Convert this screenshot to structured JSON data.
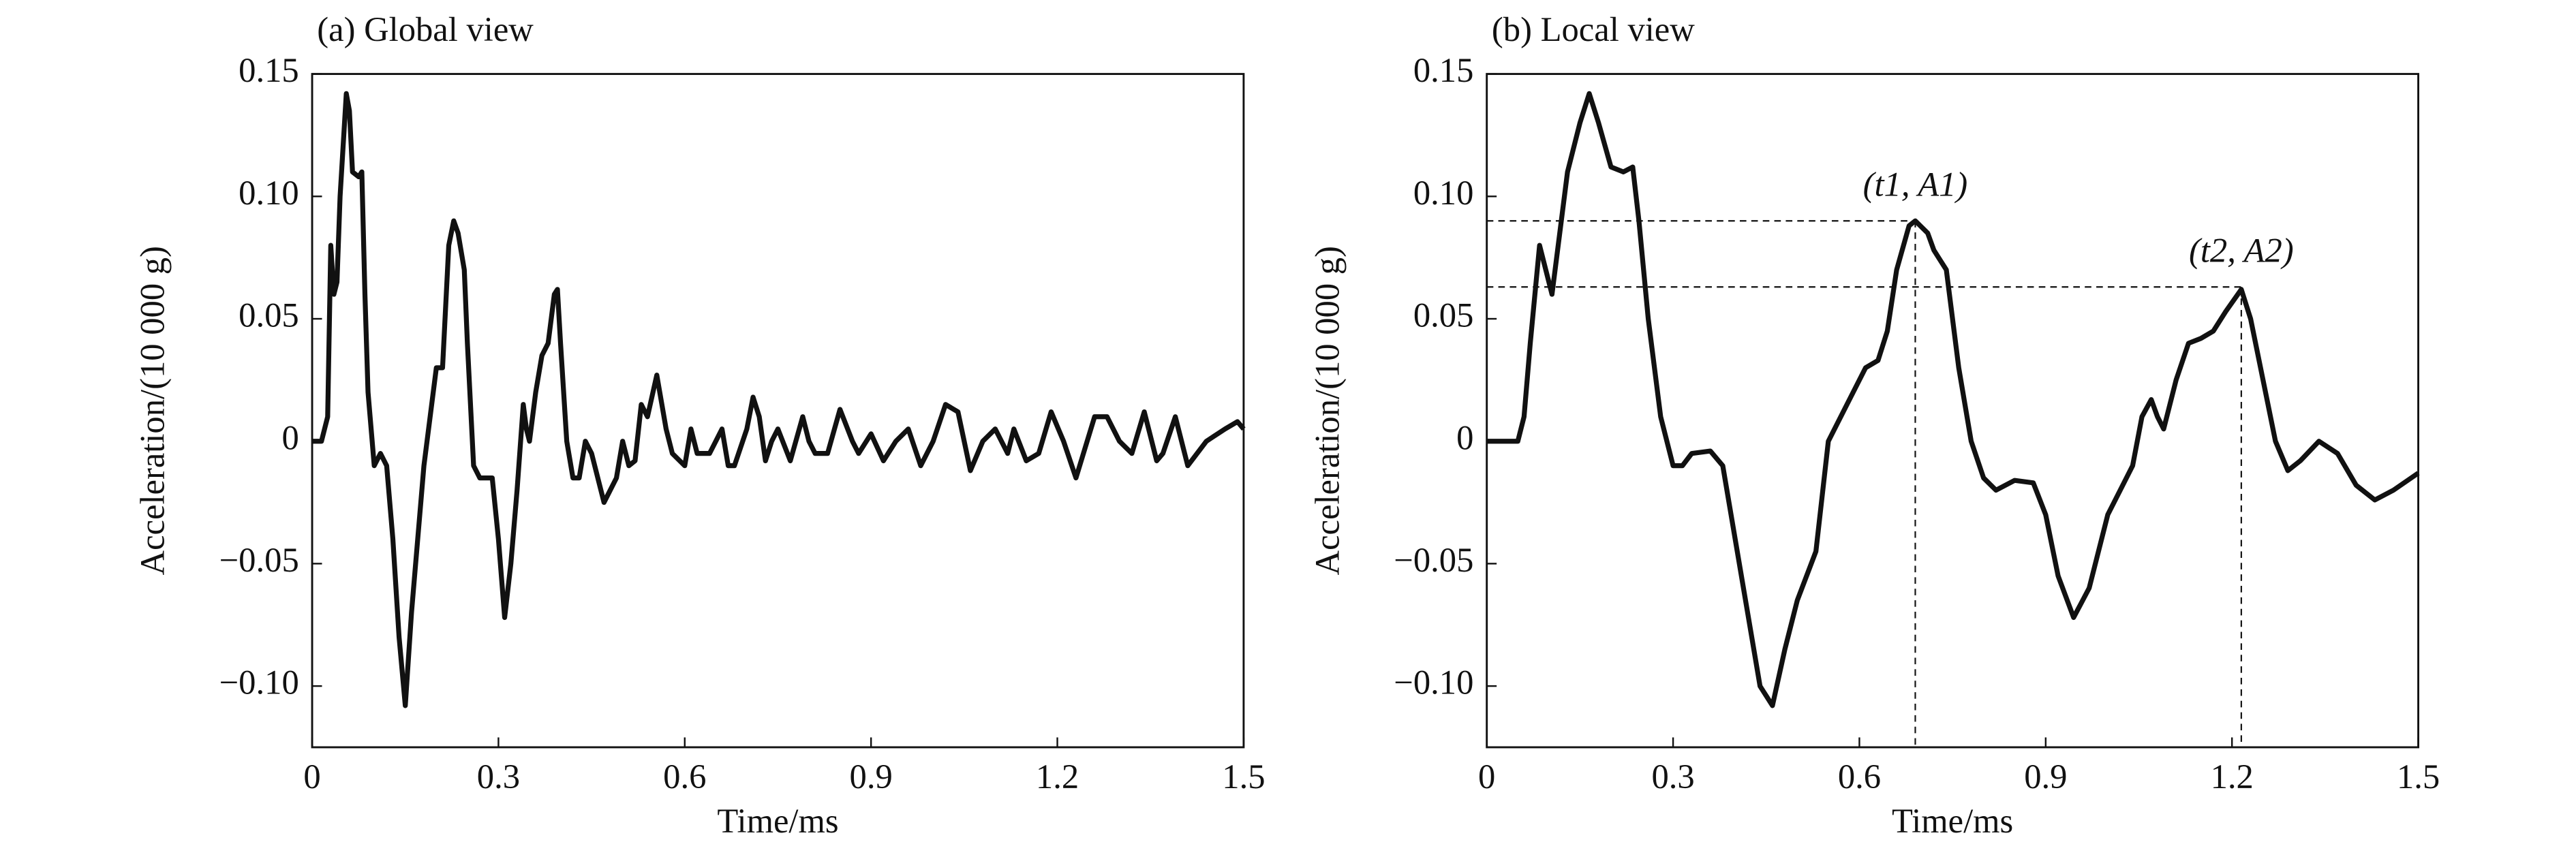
{
  "chart_data": [
    {
      "type": "line",
      "title": "(a) Global view",
      "xlabel": "Time/ms",
      "ylabel": "Acceleration/(10 000 g)",
      "color": "#111111",
      "xlim": [
        0,
        1.5
      ],
      "ylim": [
        -0.125,
        0.15
      ],
      "xticks": [
        0,
        0.3,
        0.6,
        0.9,
        1.2,
        1.5
      ],
      "yticks": [
        {
          "value": -0.1,
          "label": "−0.10"
        },
        {
          "value": -0.05,
          "label": "−0.05"
        },
        0,
        0.05,
        {
          "value": 0.1,
          "label": "0.10"
        },
        0.15
      ],
      "x": [
        0,
        0.015,
        0.025,
        0.03,
        0.035,
        0.04,
        0.045,
        0.055,
        0.06,
        0.065,
        0.075,
        0.08,
        0.085,
        0.09,
        0.1,
        0.11,
        0.12,
        0.13,
        0.14,
        0.15,
        0.16,
        0.17,
        0.18,
        0.19,
        0.2,
        0.21,
        0.22,
        0.228,
        0.235,
        0.245,
        0.25,
        0.26,
        0.27,
        0.29,
        0.3,
        0.31,
        0.32,
        0.33,
        0.34,
        0.345,
        0.35,
        0.36,
        0.37,
        0.38,
        0.39,
        0.395,
        0.4,
        0.41,
        0.42,
        0.43,
        0.44,
        0.45,
        0.47,
        0.49,
        0.5,
        0.51,
        0.52,
        0.53,
        0.54,
        0.555,
        0.57,
        0.58,
        0.6,
        0.61,
        0.62,
        0.64,
        0.65,
        0.66,
        0.67,
        0.68,
        0.7,
        0.71,
        0.72,
        0.73,
        0.74,
        0.75,
        0.77,
        0.79,
        0.8,
        0.81,
        0.83,
        0.85,
        0.87,
        0.88,
        0.9,
        0.92,
        0.94,
        0.96,
        0.98,
        1.0,
        1.02,
        1.04,
        1.05,
        1.06,
        1.08,
        1.1,
        1.12,
        1.13,
        1.15,
        1.17,
        1.19,
        1.21,
        1.23,
        1.26,
        1.28,
        1.3,
        1.32,
        1.34,
        1.36,
        1.37,
        1.39,
        1.41,
        1.44,
        1.47,
        1.49,
        1.5
      ],
      "values": [
        0,
        0,
        0.01,
        0.08,
        0.06,
        0.065,
        0.1,
        0.142,
        0.135,
        0.11,
        0.108,
        0.11,
        0.06,
        0.02,
        -0.01,
        -0.005,
        -0.01,
        -0.04,
        -0.08,
        -0.108,
        -0.07,
        -0.04,
        -0.01,
        0.01,
        0.03,
        0.03,
        0.08,
        0.09,
        0.085,
        0.07,
        0.04,
        -0.01,
        -0.015,
        -0.015,
        -0.04,
        -0.072,
        -0.05,
        -0.02,
        0.015,
        0.005,
        0,
        0.02,
        0.035,
        0.04,
        0.06,
        0.062,
        0.04,
        0,
        -0.015,
        -0.015,
        0,
        -0.005,
        -0.025,
        -0.015,
        0,
        -0.01,
        -0.008,
        0.015,
        0.01,
        0.027,
        0.005,
        -0.005,
        -0.01,
        0.005,
        -0.005,
        -0.005,
        0,
        0.005,
        -0.01,
        -0.01,
        0.005,
        0.018,
        0.01,
        -0.008,
        0,
        0.005,
        -0.008,
        0.01,
        0,
        -0.005,
        -0.005,
        0.013,
        0,
        -0.005,
        0.003,
        -0.008,
        0,
        0.005,
        -0.01,
        0,
        0.015,
        0.012,
        0,
        -0.012,
        0,
        0.005,
        -0.005,
        0.005,
        -0.008,
        -0.005,
        0.012,
        0,
        -0.015,
        0.01,
        0.01,
        0,
        -0.005,
        0.012,
        -0.008,
        -0.005,
        0.01,
        -0.01,
        0,
        0.005,
        0.008,
        0.005
      ]
    },
    {
      "type": "line",
      "title": "(b) Local view",
      "xlabel": "Time/ms",
      "ylabel": "Acceleration/(10 000 g)",
      "color": "#111111",
      "xlim": [
        0,
        1.5
      ],
      "ylim": [
        -0.125,
        0.15
      ],
      "xticks": [
        0,
        0.3,
        0.6,
        0.9,
        1.2,
        1.5
      ],
      "yticks": [
        {
          "value": -0.1,
          "label": "−0.10"
        },
        {
          "value": -0.05,
          "label": "−0.05"
        },
        0,
        0.05,
        {
          "value": 0.1,
          "label": "0.10"
        },
        0.15
      ],
      "x": [
        0,
        0.05,
        0.06,
        0.07,
        0.085,
        0.095,
        0.105,
        0.12,
        0.13,
        0.15,
        0.165,
        0.18,
        0.2,
        0.22,
        0.235,
        0.245,
        0.26,
        0.28,
        0.3,
        0.315,
        0.33,
        0.36,
        0.38,
        0.4,
        0.42,
        0.44,
        0.46,
        0.48,
        0.5,
        0.53,
        0.55,
        0.58,
        0.61,
        0.63,
        0.645,
        0.66,
        0.68,
        0.69,
        0.71,
        0.72,
        0.74,
        0.76,
        0.78,
        0.8,
        0.82,
        0.85,
        0.88,
        0.9,
        0.92,
        0.945,
        0.97,
        1.0,
        1.02,
        1.04,
        1.055,
        1.07,
        1.08,
        1.09,
        1.11,
        1.13,
        1.15,
        1.17,
        1.19,
        1.215,
        1.23,
        1.25,
        1.27,
        1.29,
        1.31,
        1.34,
        1.37,
        1.4,
        1.43,
        1.46,
        1.5
      ],
      "values": [
        0,
        0,
        0.01,
        0.04,
        0.08,
        0.07,
        0.06,
        0.09,
        0.11,
        0.13,
        0.142,
        0.13,
        0.112,
        0.11,
        0.112,
        0.09,
        0.05,
        0.01,
        -0.01,
        -0.01,
        -0.005,
        -0.004,
        -0.01,
        -0.04,
        -0.07,
        -0.1,
        -0.108,
        -0.085,
        -0.065,
        -0.045,
        0,
        0.015,
        0.03,
        0.033,
        0.045,
        0.07,
        0.088,
        0.09,
        0.085,
        0.078,
        0.07,
        0.03,
        0,
        -0.015,
        -0.02,
        -0.016,
        -0.017,
        -0.03,
        -0.055,
        -0.072,
        -0.06,
        -0.03,
        -0.02,
        -0.01,
        0.01,
        0.017,
        0.01,
        0.005,
        0.025,
        0.04,
        0.042,
        0.045,
        0.053,
        0.062,
        0.05,
        0.025,
        0,
        -0.012,
        -0.008,
        0,
        -0.005,
        -0.018,
        -0.024,
        -0.02,
        -0.013
      ],
      "annotations": [
        {
          "label": "(t1, A1)",
          "x": 0.69,
          "y": 0.09
        },
        {
          "label": "(t2, A2)",
          "x": 1.215,
          "y": 0.063
        }
      ]
    }
  ]
}
